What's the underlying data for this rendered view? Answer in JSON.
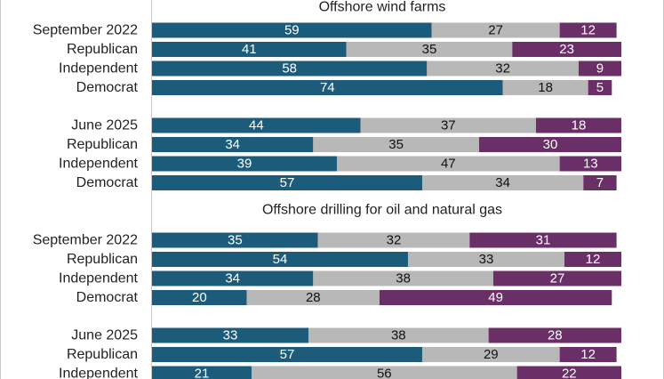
{
  "colors": {
    "favor": "#1c5c7a",
    "neutral": "#b8b8b8",
    "oppose": "#6a2f66",
    "label_on_dark": "#ffffff",
    "label_on_light": "#111111"
  },
  "chart_data": {
    "type": "bar",
    "orientation": "horizontal",
    "stacked": true,
    "xlim": [
      0,
      100
    ],
    "sections": [
      {
        "title": "Offshore wind farms",
        "groups": [
          {
            "rows": [
              {
                "label": "September 2022",
                "values": [
                  59,
                  27,
                  12
                ]
              },
              {
                "label": "Republican",
                "values": [
                  41,
                  35,
                  23
                ]
              },
              {
                "label": "Independent",
                "values": [
                  58,
                  32,
                  9
                ]
              },
              {
                "label": "Democrat",
                "values": [
                  74,
                  18,
                  5
                ]
              }
            ]
          },
          {
            "rows": [
              {
                "label": "June 2025",
                "values": [
                  44,
                  37,
                  18
                ]
              },
              {
                "label": "Republican",
                "values": [
                  34,
                  35,
                  30
                ]
              },
              {
                "label": "Independent",
                "values": [
                  39,
                  47,
                  13
                ]
              },
              {
                "label": "Democrat",
                "values": [
                  57,
                  34,
                  7
                ]
              }
            ]
          }
        ]
      },
      {
        "title": "Offshore drilling for oil and natural gas",
        "groups": [
          {
            "rows": [
              {
                "label": "September 2022",
                "values": [
                  35,
                  32,
                  31
                ]
              },
              {
                "label": "Republican",
                "values": [
                  54,
                  33,
                  12
                ]
              },
              {
                "label": "Independent",
                "values": [
                  34,
                  38,
                  27
                ]
              },
              {
                "label": "Democrat",
                "values": [
                  20,
                  28,
                  49
                ]
              }
            ]
          },
          {
            "rows": [
              {
                "label": "June 2025",
                "values": [
                  33,
                  38,
                  28
                ]
              },
              {
                "label": "Republican",
                "values": [
                  57,
                  29,
                  12
                ]
              },
              {
                "label": "Independent",
                "values": [
                  21,
                  56,
                  22
                ]
              }
            ]
          }
        ]
      }
    ]
  }
}
